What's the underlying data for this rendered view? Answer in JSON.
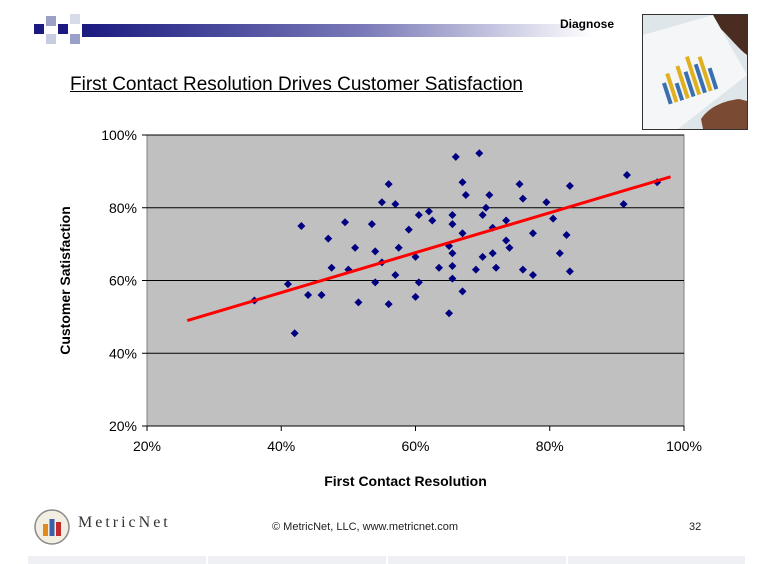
{
  "header": {
    "section_label": "Diagnose",
    "title": "First Contact Resolution Drives Customer Satisfaction",
    "accent_color": "#1a1a80"
  },
  "chart_data": {
    "type": "scatter",
    "title": "First Contact Resolution Drives Customer Satisfaction",
    "xlabel": "First Contact Resolution",
    "ylabel": "Customer Satisfaction",
    "xlim": [
      20,
      100
    ],
    "ylim": [
      20,
      100
    ],
    "x_ticks": [
      "20%",
      "40%",
      "60%",
      "80%",
      "100%"
    ],
    "y_ticks": [
      "20%",
      "40%",
      "60%",
      "80%",
      "100%"
    ],
    "grid": "horizontal major gridlines",
    "plot_background": "#c0c0c0",
    "marker_color": "#000080",
    "trendline_color": "#ff0000",
    "trendline": {
      "x": [
        26,
        98
      ],
      "y": [
        49,
        88.5
      ]
    },
    "points": [
      [
        36,
        54.5
      ],
      [
        41,
        59
      ],
      [
        42,
        45.5
      ],
      [
        43,
        75
      ],
      [
        44,
        56
      ],
      [
        46,
        56
      ],
      [
        47,
        71.5
      ],
      [
        47.5,
        63.5
      ],
      [
        49.5,
        76
      ],
      [
        50,
        63
      ],
      [
        51,
        69
      ],
      [
        51.5,
        54
      ],
      [
        53.5,
        75.5
      ],
      [
        54,
        59.5
      ],
      [
        54,
        68
      ],
      [
        55,
        81.5
      ],
      [
        55,
        65
      ],
      [
        56,
        86.5
      ],
      [
        56,
        53.5
      ],
      [
        57,
        81
      ],
      [
        57,
        61.5
      ],
      [
        57.5,
        69
      ],
      [
        59,
        74
      ],
      [
        60,
        66.5
      ],
      [
        60,
        55.5
      ],
      [
        60.5,
        78
      ],
      [
        60.5,
        59.5
      ],
      [
        62,
        79
      ],
      [
        62.5,
        76.5
      ],
      [
        63.5,
        63.5
      ],
      [
        65,
        69.5
      ],
      [
        65,
        51
      ],
      [
        65.5,
        78
      ],
      [
        65.5,
        75.5
      ],
      [
        65.5,
        64
      ],
      [
        65.5,
        60.5
      ],
      [
        65.5,
        67.5
      ],
      [
        66,
        94
      ],
      [
        67,
        73
      ],
      [
        67,
        57
      ],
      [
        67,
        87
      ],
      [
        67.5,
        83.5
      ],
      [
        69,
        63
      ],
      [
        69.5,
        95
      ],
      [
        70,
        78
      ],
      [
        70,
        66.5
      ],
      [
        70.5,
        80
      ],
      [
        71,
        83.5
      ],
      [
        71.5,
        74.5
      ],
      [
        71.5,
        67.5
      ],
      [
        72,
        63.5
      ],
      [
        73.5,
        71
      ],
      [
        73.5,
        76.5
      ],
      [
        74,
        69
      ],
      [
        75.5,
        86.5
      ],
      [
        76,
        82.5
      ],
      [
        76,
        63
      ],
      [
        77.5,
        73
      ],
      [
        77.5,
        61.5
      ],
      [
        79.5,
        81.5
      ],
      [
        80.5,
        77
      ],
      [
        81.5,
        67.5
      ],
      [
        82.5,
        72.5
      ],
      [
        83,
        62.5
      ],
      [
        83,
        86
      ],
      [
        91,
        81
      ],
      [
        91.5,
        89
      ],
      [
        96,
        87
      ]
    ]
  },
  "footer": {
    "logo_text": "MetricNet",
    "copyright": "© MetricNet, LLC, www.metricnet.com",
    "page_number": "32"
  }
}
